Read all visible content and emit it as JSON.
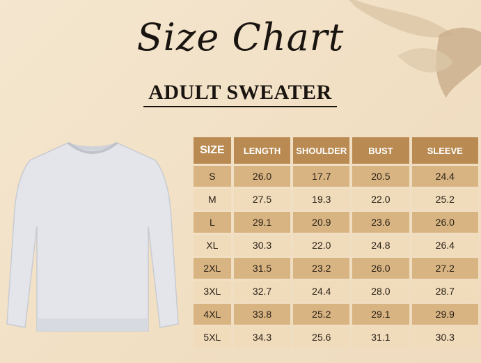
{
  "title": "Size Chart",
  "subtitle": "ADULT SWEATER",
  "table": {
    "headers": [
      "SIZE",
      "LENGTH",
      "SHOULDER",
      "BUST",
      "SLEEVE"
    ],
    "rows": [
      [
        "S",
        "26.0",
        "17.7",
        "20.5",
        "24.4"
      ],
      [
        "M",
        "27.5",
        "19.3",
        "22.0",
        "25.2"
      ],
      [
        "L",
        "29.1",
        "20.9",
        "23.6",
        "26.0"
      ],
      [
        "XL",
        "30.3",
        "22.0",
        "24.8",
        "26.4"
      ],
      [
        "2XL",
        "31.5",
        "23.2",
        "26.0",
        "27.2"
      ],
      [
        "3XL",
        "32.7",
        "24.4",
        "28.0",
        "28.7"
      ],
      [
        "4XL",
        "33.8",
        "25.2",
        "29.1",
        "29.9"
      ],
      [
        "5XL",
        "34.3",
        "25.6",
        "31.1",
        "30.3"
      ]
    ]
  },
  "colors": {
    "header": "#b98b52",
    "row_dark": "#d8b482",
    "row_light": "#f0dbbb",
    "background": "#f3e3c9"
  }
}
